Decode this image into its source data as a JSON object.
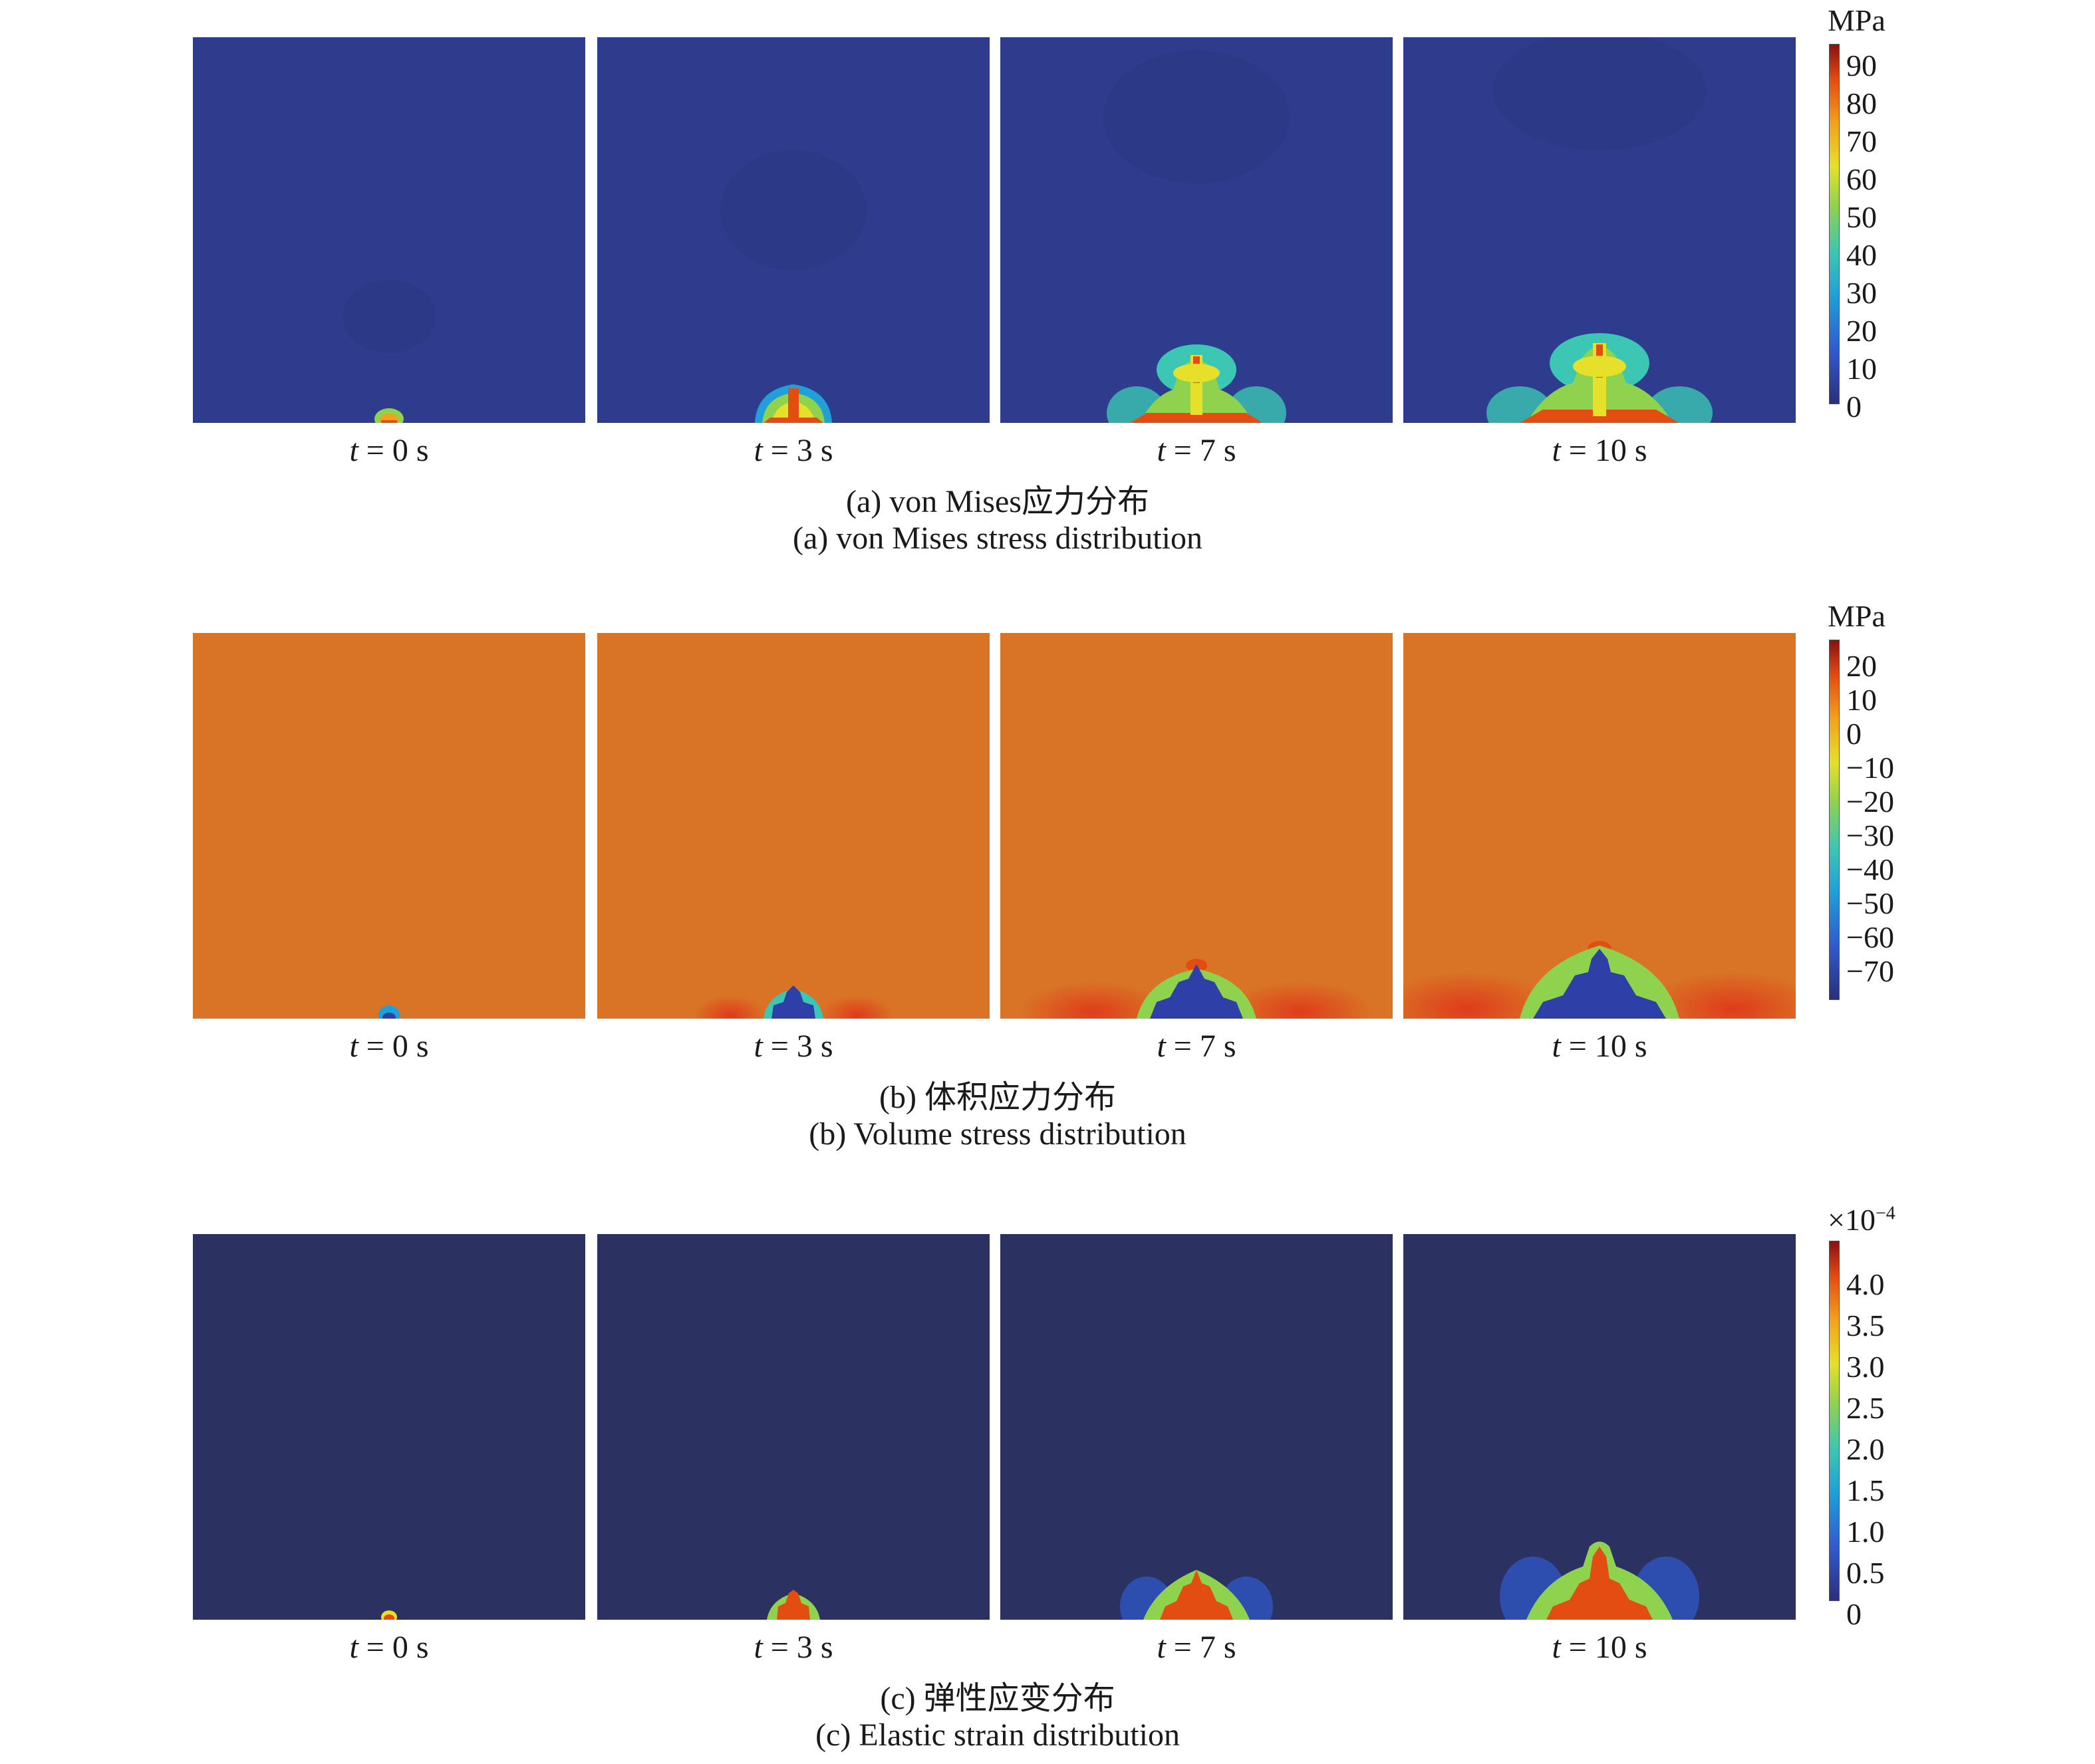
{
  "figures": [
    {
      "id": "a",
      "time_labels": [
        "0 s",
        "3 s",
        "7 s",
        "10 s"
      ],
      "caption_cn": "(a) von Mises应力分布",
      "caption_en": "(a) von Mises stress distribution",
      "colorbar": {
        "unit": "MPa",
        "ticks": [
          "90",
          "80",
          "70",
          "60",
          "50",
          "40",
          "30",
          "20",
          "10",
          "0"
        ]
      },
      "background_color": "#2d3c8c"
    },
    {
      "id": "b",
      "time_labels": [
        "0 s",
        "3 s",
        "7 s",
        "10 s"
      ],
      "caption_cn": "(b) 体积应力分布",
      "caption_en": "(b) Volume stress distribution",
      "colorbar": {
        "unit": "MPa",
        "ticks": [
          "20",
          "10",
          "0",
          "−10",
          "−20",
          "−30",
          "−40",
          "−50",
          "−60",
          "−70"
        ]
      },
      "background_color": "#d97325"
    },
    {
      "id": "c",
      "time_labels": [
        "0 s",
        "3 s",
        "7 s",
        "10 s"
      ],
      "caption_cn": "(c) 弹性应变分布",
      "caption_en": "(c) Elastic strain distribution",
      "colorbar": {
        "unit_base": "×10",
        "unit_exp": "−4",
        "ticks": [
          "4.0",
          "3.5",
          "3.0",
          "2.5",
          "2.0",
          "1.5",
          "1.0",
          "0.5",
          "0"
        ]
      },
      "background_color": "#2b3161"
    }
  ],
  "time_symbol": "t",
  "colormap": [
    "#2b2f7a",
    "#2f5bd0",
    "#1fa0d8",
    "#3cc6b4",
    "#8fd24e",
    "#e6e02a",
    "#f2a21c",
    "#e44d12",
    "#8b1010"
  ]
}
